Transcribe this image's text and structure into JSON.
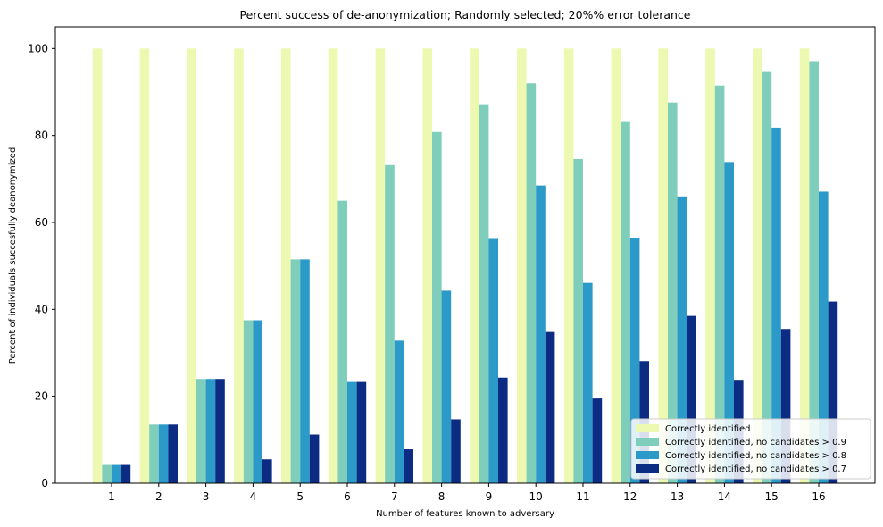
{
  "chart_data": {
    "type": "bar",
    "title": "Percent success of de-anonymization; Randomly selected; 20%% error tolerance",
    "xlabel": "Number of features known to adversary",
    "ylabel": "Percent of individuals succesfully deanonymized",
    "categories": [
      "1",
      "2",
      "3",
      "4",
      "5",
      "6",
      "7",
      "8",
      "9",
      "10",
      "11",
      "12",
      "13",
      "14",
      "15",
      "16"
    ],
    "ylim": [
      0,
      105
    ],
    "yticks": [
      0,
      20,
      40,
      60,
      80,
      100
    ],
    "grid": false,
    "legend_position": "bottom-right",
    "series": [
      {
        "name": "Correctly identified",
        "color": "#edf8b1",
        "values": [
          100,
          100,
          100,
          100,
          100,
          100,
          100,
          100,
          100,
          100,
          100,
          100,
          100,
          100,
          100,
          100
        ]
      },
      {
        "name": "Correctly identified, no candidates > 0.9",
        "color": "#7fcdbb",
        "values": [
          4.2,
          13.5,
          24,
          37.5,
          51.5,
          65,
          73.2,
          80.8,
          87.2,
          92,
          74.6,
          83.1,
          87.6,
          91.5,
          94.6,
          97.1
        ]
      },
      {
        "name": "Correctly identified, no candidates > 0.8",
        "color": "#2c9ac9",
        "values": [
          4.2,
          13.5,
          24,
          37.5,
          51.5,
          23.3,
          32.8,
          44.3,
          56.2,
          68.5,
          46.1,
          56.4,
          66,
          73.9,
          81.8,
          67.1
        ]
      },
      {
        "name": "Correctly identified, no candidates > 0.7",
        "color": "#0c2c84",
        "values": [
          4.2,
          13.5,
          24,
          5.5,
          11.2,
          23.3,
          7.8,
          14.7,
          24.3,
          34.8,
          19.5,
          28.1,
          38.5,
          23.8,
          35.5,
          41.8
        ]
      }
    ]
  }
}
